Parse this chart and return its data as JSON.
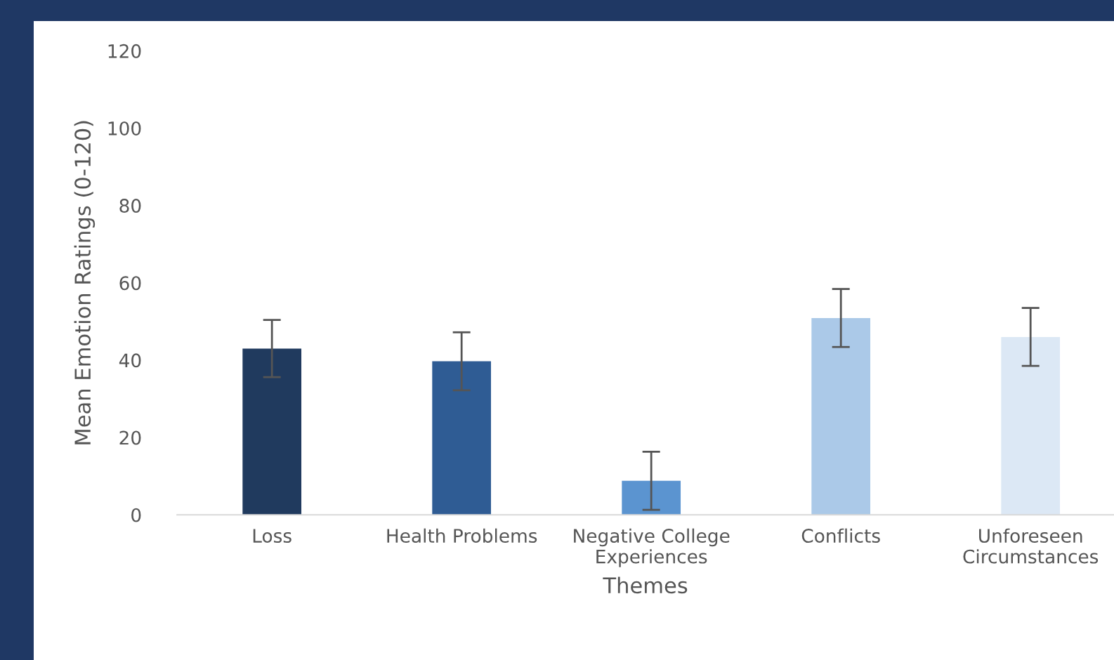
{
  "chart_data": {
    "type": "bar",
    "categories": [
      "Loss",
      "Health Problems",
      "Negative College\nExperiences",
      "Conflicts",
      "Unforeseen\nCircumstances"
    ],
    "values": [
      43,
      39.7,
      8.8,
      50.9,
      46
    ],
    "errors": [
      7.4,
      7.5,
      7.5,
      7.5,
      7.5
    ],
    "colors": [
      "#203a5e",
      "#2f5c94",
      "#5b94d0",
      "#abc9e8",
      "#dce8f5"
    ],
    "xlabel": "Themes",
    "ylabel": "Mean Emotion Ratings (0-120)",
    "ylim": [
      0,
      120
    ],
    "yticks": [
      0,
      20,
      40,
      60,
      80,
      100,
      120
    ],
    "grid": false,
    "legend": false
  }
}
